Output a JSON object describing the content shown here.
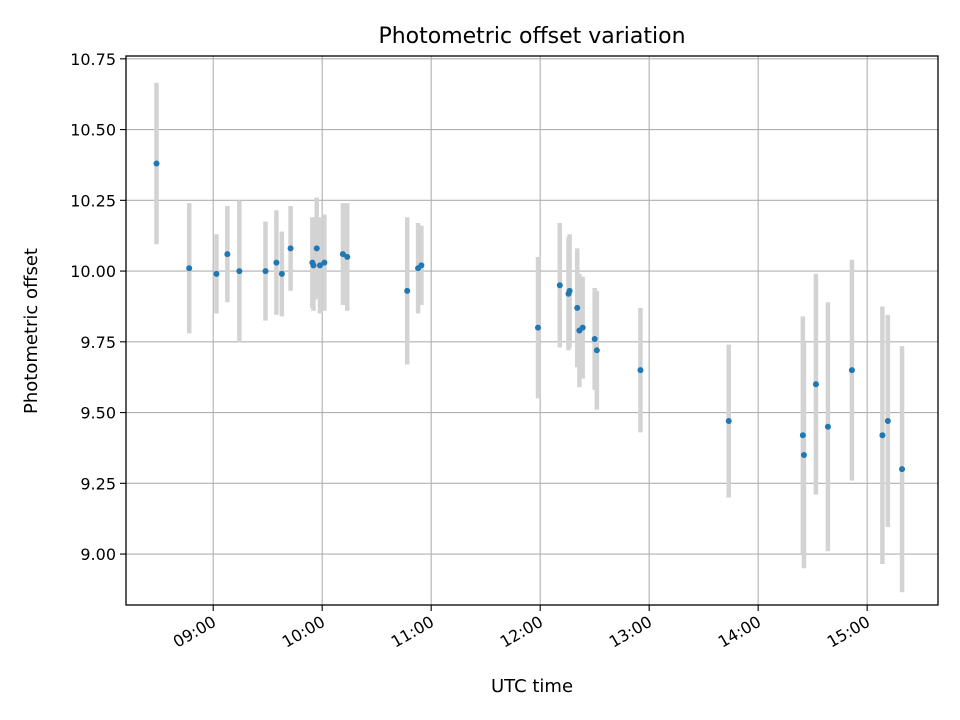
{
  "chart_data": {
    "type": "scatter",
    "title": "Photometric offset variation",
    "xlabel": "UTC time",
    "ylabel": "Photometric offset",
    "xlim": [
      8.2,
      15.65
    ],
    "ylim": [
      8.82,
      10.76
    ],
    "grid": true,
    "colors": {
      "point": "#1f77b4",
      "errorbar": "#d3d3d3",
      "grid": "#b0b0b0"
    },
    "x_ticks": [
      {
        "value": 9,
        "label": "09:00"
      },
      {
        "value": 10,
        "label": "10:00"
      },
      {
        "value": 11,
        "label": "11:00"
      },
      {
        "value": 12,
        "label": "12:00"
      },
      {
        "value": 13,
        "label": "13:00"
      },
      {
        "value": 14,
        "label": "14:00"
      },
      {
        "value": 15,
        "label": "15:00"
      }
    ],
    "y_ticks": [
      {
        "value": 9.0,
        "label": "9.00"
      },
      {
        "value": 9.25,
        "label": "9.25"
      },
      {
        "value": 9.5,
        "label": "9.50"
      },
      {
        "value": 9.75,
        "label": "9.75"
      },
      {
        "value": 10.0,
        "label": "10.00"
      },
      {
        "value": 10.25,
        "label": "10.25"
      },
      {
        "value": 10.5,
        "label": "10.50"
      },
      {
        "value": 10.75,
        "label": "10.75"
      }
    ],
    "points": [
      {
        "x": 8.48,
        "y": 10.38,
        "err": 0.285
      },
      {
        "x": 8.78,
        "y": 10.01,
        "err": 0.23
      },
      {
        "x": 9.03,
        "y": 9.99,
        "err": 0.14
      },
      {
        "x": 9.13,
        "y": 10.06,
        "err": 0.17
      },
      {
        "x": 9.24,
        "y": 10.0,
        "err": 0.25
      },
      {
        "x": 9.48,
        "y": 10.0,
        "err": 0.175
      },
      {
        "x": 9.58,
        "y": 10.03,
        "err": 0.185
      },
      {
        "x": 9.63,
        "y": 9.99,
        "err": 0.15
      },
      {
        "x": 9.71,
        "y": 10.08,
        "err": 0.15
      },
      {
        "x": 9.91,
        "y": 10.03,
        "err": 0.16
      },
      {
        "x": 9.92,
        "y": 10.02,
        "err": 0.16
      },
      {
        "x": 9.95,
        "y": 10.08,
        "err": 0.18
      },
      {
        "x": 9.98,
        "y": 10.02,
        "err": 0.17
      },
      {
        "x": 10.02,
        "y": 10.03,
        "err": 0.17
      },
      {
        "x": 10.19,
        "y": 10.06,
        "err": 0.18
      },
      {
        "x": 10.23,
        "y": 10.05,
        "err": 0.19
      },
      {
        "x": 10.78,
        "y": 9.93,
        "err": 0.26
      },
      {
        "x": 10.88,
        "y": 10.01,
        "err": 0.16
      },
      {
        "x": 10.91,
        "y": 10.02,
        "err": 0.14
      },
      {
        "x": 11.98,
        "y": 9.8,
        "err": 0.25
      },
      {
        "x": 12.18,
        "y": 9.95,
        "err": 0.22
      },
      {
        "x": 12.26,
        "y": 9.92,
        "err": 0.2
      },
      {
        "x": 12.27,
        "y": 9.93,
        "err": 0.2
      },
      {
        "x": 12.34,
        "y": 9.87,
        "err": 0.21
      },
      {
        "x": 12.36,
        "y": 9.79,
        "err": 0.2
      },
      {
        "x": 12.39,
        "y": 9.8,
        "err": 0.18
      },
      {
        "x": 12.5,
        "y": 9.76,
        "err": 0.18
      },
      {
        "x": 12.52,
        "y": 9.72,
        "err": 0.21
      },
      {
        "x": 12.92,
        "y": 9.65,
        "err": 0.22
      },
      {
        "x": 13.73,
        "y": 9.47,
        "err": 0.27
      },
      {
        "x": 14.41,
        "y": 9.42,
        "err": 0.42
      },
      {
        "x": 14.42,
        "y": 9.35,
        "err": 0.4
      },
      {
        "x": 14.53,
        "y": 9.6,
        "err": 0.39
      },
      {
        "x": 14.64,
        "y": 9.45,
        "err": 0.44
      },
      {
        "x": 14.86,
        "y": 9.65,
        "err": 0.39
      },
      {
        "x": 15.14,
        "y": 9.42,
        "err": 0.455
      },
      {
        "x": 15.19,
        "y": 9.47,
        "err": 0.375
      },
      {
        "x": 15.32,
        "y": 9.3,
        "err": 0.435
      }
    ]
  }
}
